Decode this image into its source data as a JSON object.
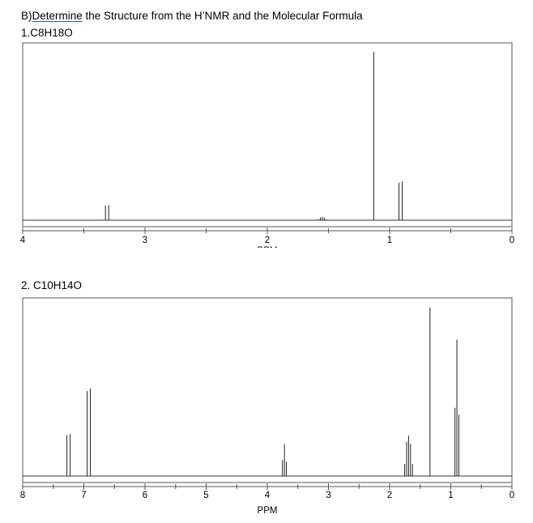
{
  "title": {
    "prefix": "B)",
    "underlined": "Determine",
    "rest": " the Structure from the H’NMR and the Molecular Formula"
  },
  "problems": [
    {
      "label": "1.C8H18O"
    },
    {
      "label": "2. C10H14O"
    }
  ],
  "chart_data": [
    {
      "type": "line",
      "description": "1H NMR spectrum for C8H18O",
      "xlabel": "PPM",
      "xlim": [
        4,
        0
      ],
      "x_reversed": true,
      "tick_labels": [
        "4",
        "3",
        "2",
        "1",
        "0"
      ],
      "peaks": [
        {
          "ppm": 3.31,
          "intensity": 0.09,
          "multiplicity": "doublet"
        },
        {
          "ppm": 1.55,
          "intensity": 0.02,
          "multiplicity": "multiplet"
        },
        {
          "ppm": 1.13,
          "intensity": 1.0,
          "multiplicity": "singlet"
        },
        {
          "ppm": 0.91,
          "intensity": 0.23,
          "multiplicity": "doublet"
        }
      ]
    },
    {
      "type": "line",
      "description": "1H NMR spectrum for C10H14O",
      "xlabel": "PPM",
      "xlim": [
        8,
        0
      ],
      "x_reversed": true,
      "tick_labels": [
        "8",
        "7",
        "6",
        "5",
        "4",
        "3",
        "2",
        "1",
        "0"
      ],
      "peaks": [
        {
          "ppm": 7.25,
          "intensity": 0.25,
          "multiplicity": "doublet"
        },
        {
          "ppm": 6.92,
          "intensity": 0.52,
          "multiplicity": "doublet"
        },
        {
          "ppm": 3.72,
          "intensity": 0.19,
          "multiplicity": "triplet"
        },
        {
          "ppm": 1.69,
          "intensity": 0.24,
          "multiplicity": "multiplet"
        },
        {
          "ppm": 1.34,
          "intensity": 1.0,
          "multiplicity": "singlet"
        },
        {
          "ppm": 0.9,
          "intensity": 0.81,
          "multiplicity": "triplet"
        }
      ]
    }
  ]
}
